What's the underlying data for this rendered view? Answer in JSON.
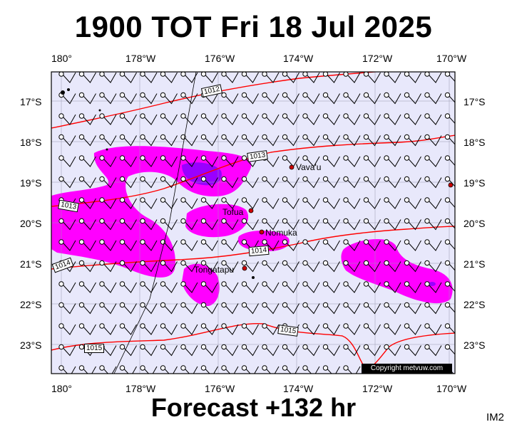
{
  "header": {
    "title": "1900 TOT Fri 18 Jul 2025"
  },
  "footer": {
    "forecast": "Forecast +132 hr",
    "product": "IM2"
  },
  "map": {
    "lon_ticks_top": [
      "180°",
      "178°W",
      "176°W",
      "174°W",
      "172°W",
      "170°W"
    ],
    "lon_ticks_bottom": [
      "180°",
      "178°W",
      "176°W",
      "174°W",
      "172°W",
      "170°W"
    ],
    "lat_ticks": [
      "17°S",
      "18°S",
      "19°S",
      "20°S",
      "21°S",
      "22°S",
      "23°S"
    ],
    "places": [
      "Vava'u",
      "Tofua",
      "Nomuka",
      "Tongatapu"
    ],
    "isobars": [
      "1012",
      "1013",
      "1013",
      "1014",
      "1014",
      "1015",
      "1015"
    ],
    "copyright": "Copyright metvuw.com",
    "colors": {
      "background": "#e8e8fb",
      "heavy_rain": "#ff00ff",
      "very_heavy_rain": "#9900ff",
      "isobar": "#ff0000"
    }
  }
}
